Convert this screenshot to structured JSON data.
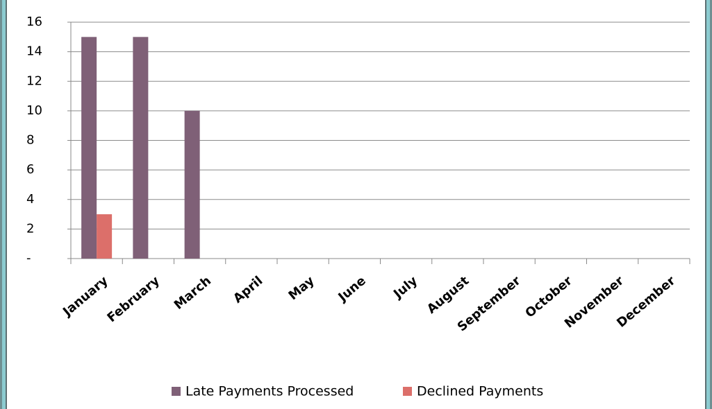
{
  "chart_data": {
    "type": "bar",
    "categories": [
      "January",
      "February",
      "March",
      "April",
      "May",
      "June",
      "July",
      "August",
      "September",
      "October",
      "November",
      "December"
    ],
    "series": [
      {
        "name": "Late Payments Processed",
        "color": "#7f6077",
        "values": [
          15,
          15,
          10,
          null,
          null,
          null,
          null,
          null,
          null,
          null,
          null,
          null
        ]
      },
      {
        "name": "Declined Payments",
        "color": "#dc6f6a",
        "values": [
          3,
          null,
          null,
          null,
          null,
          null,
          null,
          null,
          null,
          null,
          null,
          null
        ]
      }
    ],
    "ylim": [
      0,
      16
    ],
    "yticks": [
      {
        "value": 0,
        "label": "-"
      },
      2,
      4,
      6,
      8,
      10,
      12,
      14,
      16
    ],
    "grid": true,
    "legend": "bottom"
  }
}
